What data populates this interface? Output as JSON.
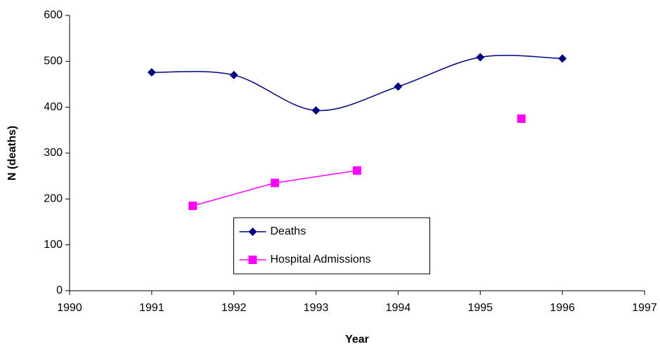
{
  "chart_data": {
    "type": "line",
    "x_label": "Year",
    "y_label": "N (deaths)",
    "xlim": [
      1990,
      1997
    ],
    "xticks": [
      1990,
      1991,
      1992,
      1993,
      1994,
      1995,
      1996,
      1997
    ],
    "ylim": [
      0,
      600
    ],
    "yticks": [
      0,
      100,
      200,
      300,
      400,
      500,
      600
    ],
    "grid": false,
    "legend": "lower center",
    "series": [
      {
        "name": "Deaths",
        "color": "#000080",
        "marker": "diamond",
        "smooth": true,
        "x": [
          1991,
          1992,
          1993,
          1994,
          1995,
          1996
        ],
        "values": [
          476,
          470,
          393,
          445,
          509,
          506
        ]
      },
      {
        "name": "Hospital Admissions",
        "color": "#ff00ff",
        "marker": "square",
        "smooth": false,
        "x": [
          1991.5,
          1992.5,
          1993.5,
          1994.5,
          1995.5
        ],
        "values": [
          185,
          235,
          262,
          null,
          375
        ]
      }
    ]
  }
}
